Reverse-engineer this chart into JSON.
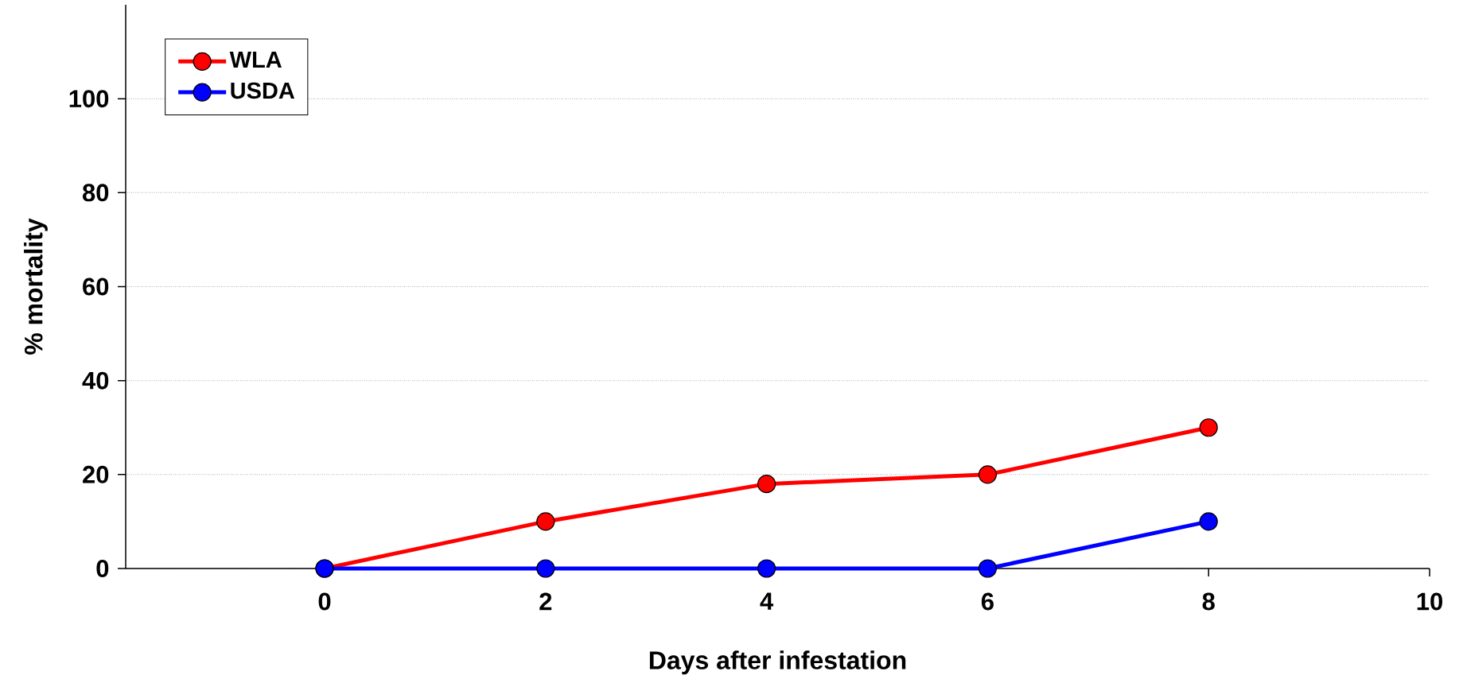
{
  "chart_data": {
    "type": "line",
    "xlabel": "Days after infestation",
    "ylabel": "% mortality",
    "x": [
      0,
      2,
      4,
      6,
      8
    ],
    "series": [
      {
        "name": "WLA",
        "color": "#ff0000",
        "values": [
          0,
          10,
          18,
          20,
          30
        ]
      },
      {
        "name": "USDA",
        "color": "#0000ff",
        "values": [
          0,
          0,
          0,
          0,
          10
        ]
      }
    ],
    "xlim": [
      -1.8,
      10
    ],
    "xticks": [
      0,
      2,
      4,
      6,
      8,
      10
    ],
    "ylim": [
      0,
      120
    ],
    "yticks": [
      0,
      20,
      40,
      60,
      80,
      100
    ],
    "grid": "y",
    "legend": "top left",
    "marker": "circle",
    "line_style": "solid"
  }
}
